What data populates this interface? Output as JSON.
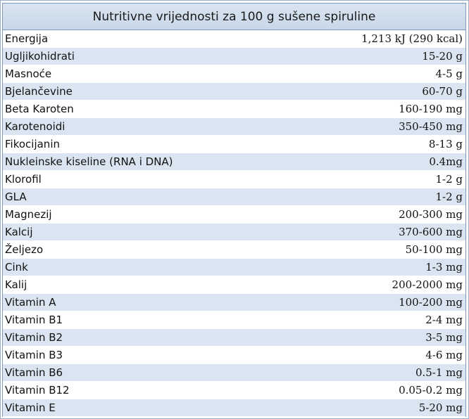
{
  "table": {
    "title": "Nutritivne vrijednosti za 100 g sušene spiruline",
    "rows": [
      {
        "name": "Energija",
        "value": "1,213 kJ (290 kcal)"
      },
      {
        "name": "Ugljikohidrati",
        "value": "15-20 g"
      },
      {
        "name": "Masnoće",
        "value": "4-5 g"
      },
      {
        "name": "Bjelančevine",
        "value": "60-70 g"
      },
      {
        "name": "Beta Karoten",
        "value": "160-190 mg"
      },
      {
        "name": "Karotenoidi",
        "value": "350-450 mg"
      },
      {
        "name": "Fikocijanin",
        "value": "8-13 g"
      },
      {
        "name": "Nukleinske kiseline (RNA i DNA)",
        "value": "0.4mg"
      },
      {
        "name": "Klorofil",
        "value": "1-2 g"
      },
      {
        "name": "GLA",
        "value": "1-2 g"
      },
      {
        "name": "Magnezij",
        "value": "200-300 mg"
      },
      {
        "name": "Kalcij",
        "value": "370-600 mg"
      },
      {
        "name": "Željezo",
        "value": "50-100 mg"
      },
      {
        "name": "Cink",
        "value": "1-3 mg"
      },
      {
        "name": "Kalij",
        "value": "200-2000 mg"
      },
      {
        "name": "Vitamin A",
        "value": "100-200 mg"
      },
      {
        "name": "Vitamin B1",
        "value": "2-4 mg"
      },
      {
        "name": "Vitamin B2",
        "value": "3-5 mg"
      },
      {
        "name": "Vitamin B3",
        "value": "4-6 mg"
      },
      {
        "name": "Vitamin B6",
        "value": "0.5-1 mg"
      },
      {
        "name": "Vitamin B12",
        "value": "0.05-0.2 mg"
      },
      {
        "name": "Vitamin E",
        "value": "5-20 mg"
      }
    ]
  }
}
